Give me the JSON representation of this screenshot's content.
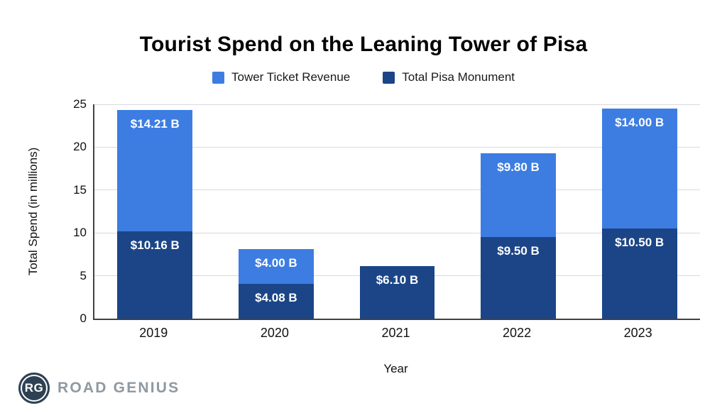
{
  "title": "Tourist Spend on the Leaning Tower of Pisa",
  "legend": [
    {
      "label": "Tower Ticket Revenue",
      "color": "#3d7de2"
    },
    {
      "label": "Total Pisa Monument",
      "color": "#1b4587"
    }
  ],
  "chart_data": {
    "type": "bar",
    "stacked": true,
    "title": "Tourist Spend on the Leaning Tower of Pisa",
    "categories": [
      "2019",
      "2020",
      "2021",
      "2022",
      "2023"
    ],
    "series": [
      {
        "name": "Tower Ticket Revenue",
        "stack_position": "top",
        "color": "#3d7de2",
        "values": [
          14.21,
          4.0,
          0,
          9.8,
          14.0
        ],
        "labels": [
          "$14.21 B",
          "$4.00 B",
          "",
          "$9.80 B",
          "$14.00 B"
        ]
      },
      {
        "name": "Total Pisa Monument",
        "stack_position": "bottom",
        "color": "#1b4587",
        "values": [
          10.16,
          4.08,
          6.1,
          9.5,
          10.5
        ],
        "labels": [
          "$10.16 B",
          "$4.08 B",
          "$6.10 B",
          "$9.50 B",
          "$10.50 B"
        ]
      }
    ],
    "xlabel": "Year",
    "ylabel": "Total Spend (in millions)",
    "ylim": [
      0,
      25
    ],
    "yticks": [
      0,
      5,
      10,
      15,
      20,
      25
    ],
    "grid": true,
    "legend_position": "top",
    "label_color": "#ffffff",
    "gridline_color": "#d9d9d9",
    "axis_color": "#424242"
  },
  "footer": {
    "logo_initials": "RG",
    "logo_text": "ROAD GENIUS"
  }
}
